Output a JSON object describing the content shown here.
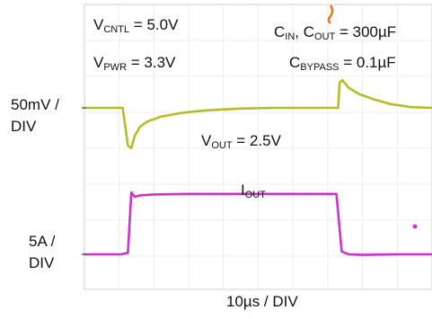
{
  "chart_data": {
    "type": "line",
    "title": "",
    "labels": {
      "v_cntl": {
        "main": "V",
        "sub": "CNTL",
        "rest": " = 5.0V"
      },
      "v_pwr": {
        "main": "V",
        "sub": "PWR",
        "rest": " = 3.3V"
      },
      "c_in": {
        "main": "C",
        "sub": "IN",
        "sep": ", C",
        "sub2": "OUT",
        "rest": " = 300µF"
      },
      "c_bypass": {
        "main": "C",
        "sub": "BYPASS",
        "rest": " = 0.1µF"
      },
      "v_out": {
        "main": "V",
        "sub": "OUT",
        "rest": " = 2.5V"
      },
      "i_out": {
        "main": "I",
        "sub": "OUT"
      }
    },
    "channel_scales": {
      "voltage_top": "50mV /",
      "voltage_bottom": "DIV",
      "current_top": "5A /",
      "current_bottom": "DIV"
    },
    "time_scale": "10µs / DIV",
    "x_range_div": [
      0,
      10
    ],
    "series": [
      {
        "name": "VOUT",
        "color": "#b5bd25",
        "x": [
          0.0,
          1.1,
          1.25,
          1.35,
          1.45,
          1.6,
          1.8,
          2.2,
          2.8,
          3.5,
          4.5,
          5.5,
          6.5,
          7.3,
          7.34,
          7.42,
          7.6,
          7.9,
          8.3,
          8.8,
          9.4,
          10.0
        ],
        "y": [
          0.0,
          0.0,
          -1.5,
          -1.6,
          -1.1,
          -0.75,
          -0.55,
          -0.35,
          -0.2,
          -0.1,
          -0.03,
          0.0,
          0.0,
          0.0,
          1.0,
          1.1,
          0.8,
          0.55,
          0.35,
          0.15,
          0.03,
          0.0
        ]
      },
      {
        "name": "IOUT",
        "color": "#cc33cc",
        "x": [
          0.0,
          1.05,
          1.25,
          1.35,
          1.45,
          1.6,
          2.0,
          3.0,
          7.25,
          7.4,
          7.6,
          8.0,
          9.0,
          10.0
        ],
        "y": [
          0.0,
          0.0,
          0.05,
          2.15,
          2.0,
          2.05,
          2.08,
          2.1,
          2.1,
          0.1,
          0.0,
          -0.02,
          0.0,
          0.0
        ]
      }
    ],
    "grid": true
  }
}
